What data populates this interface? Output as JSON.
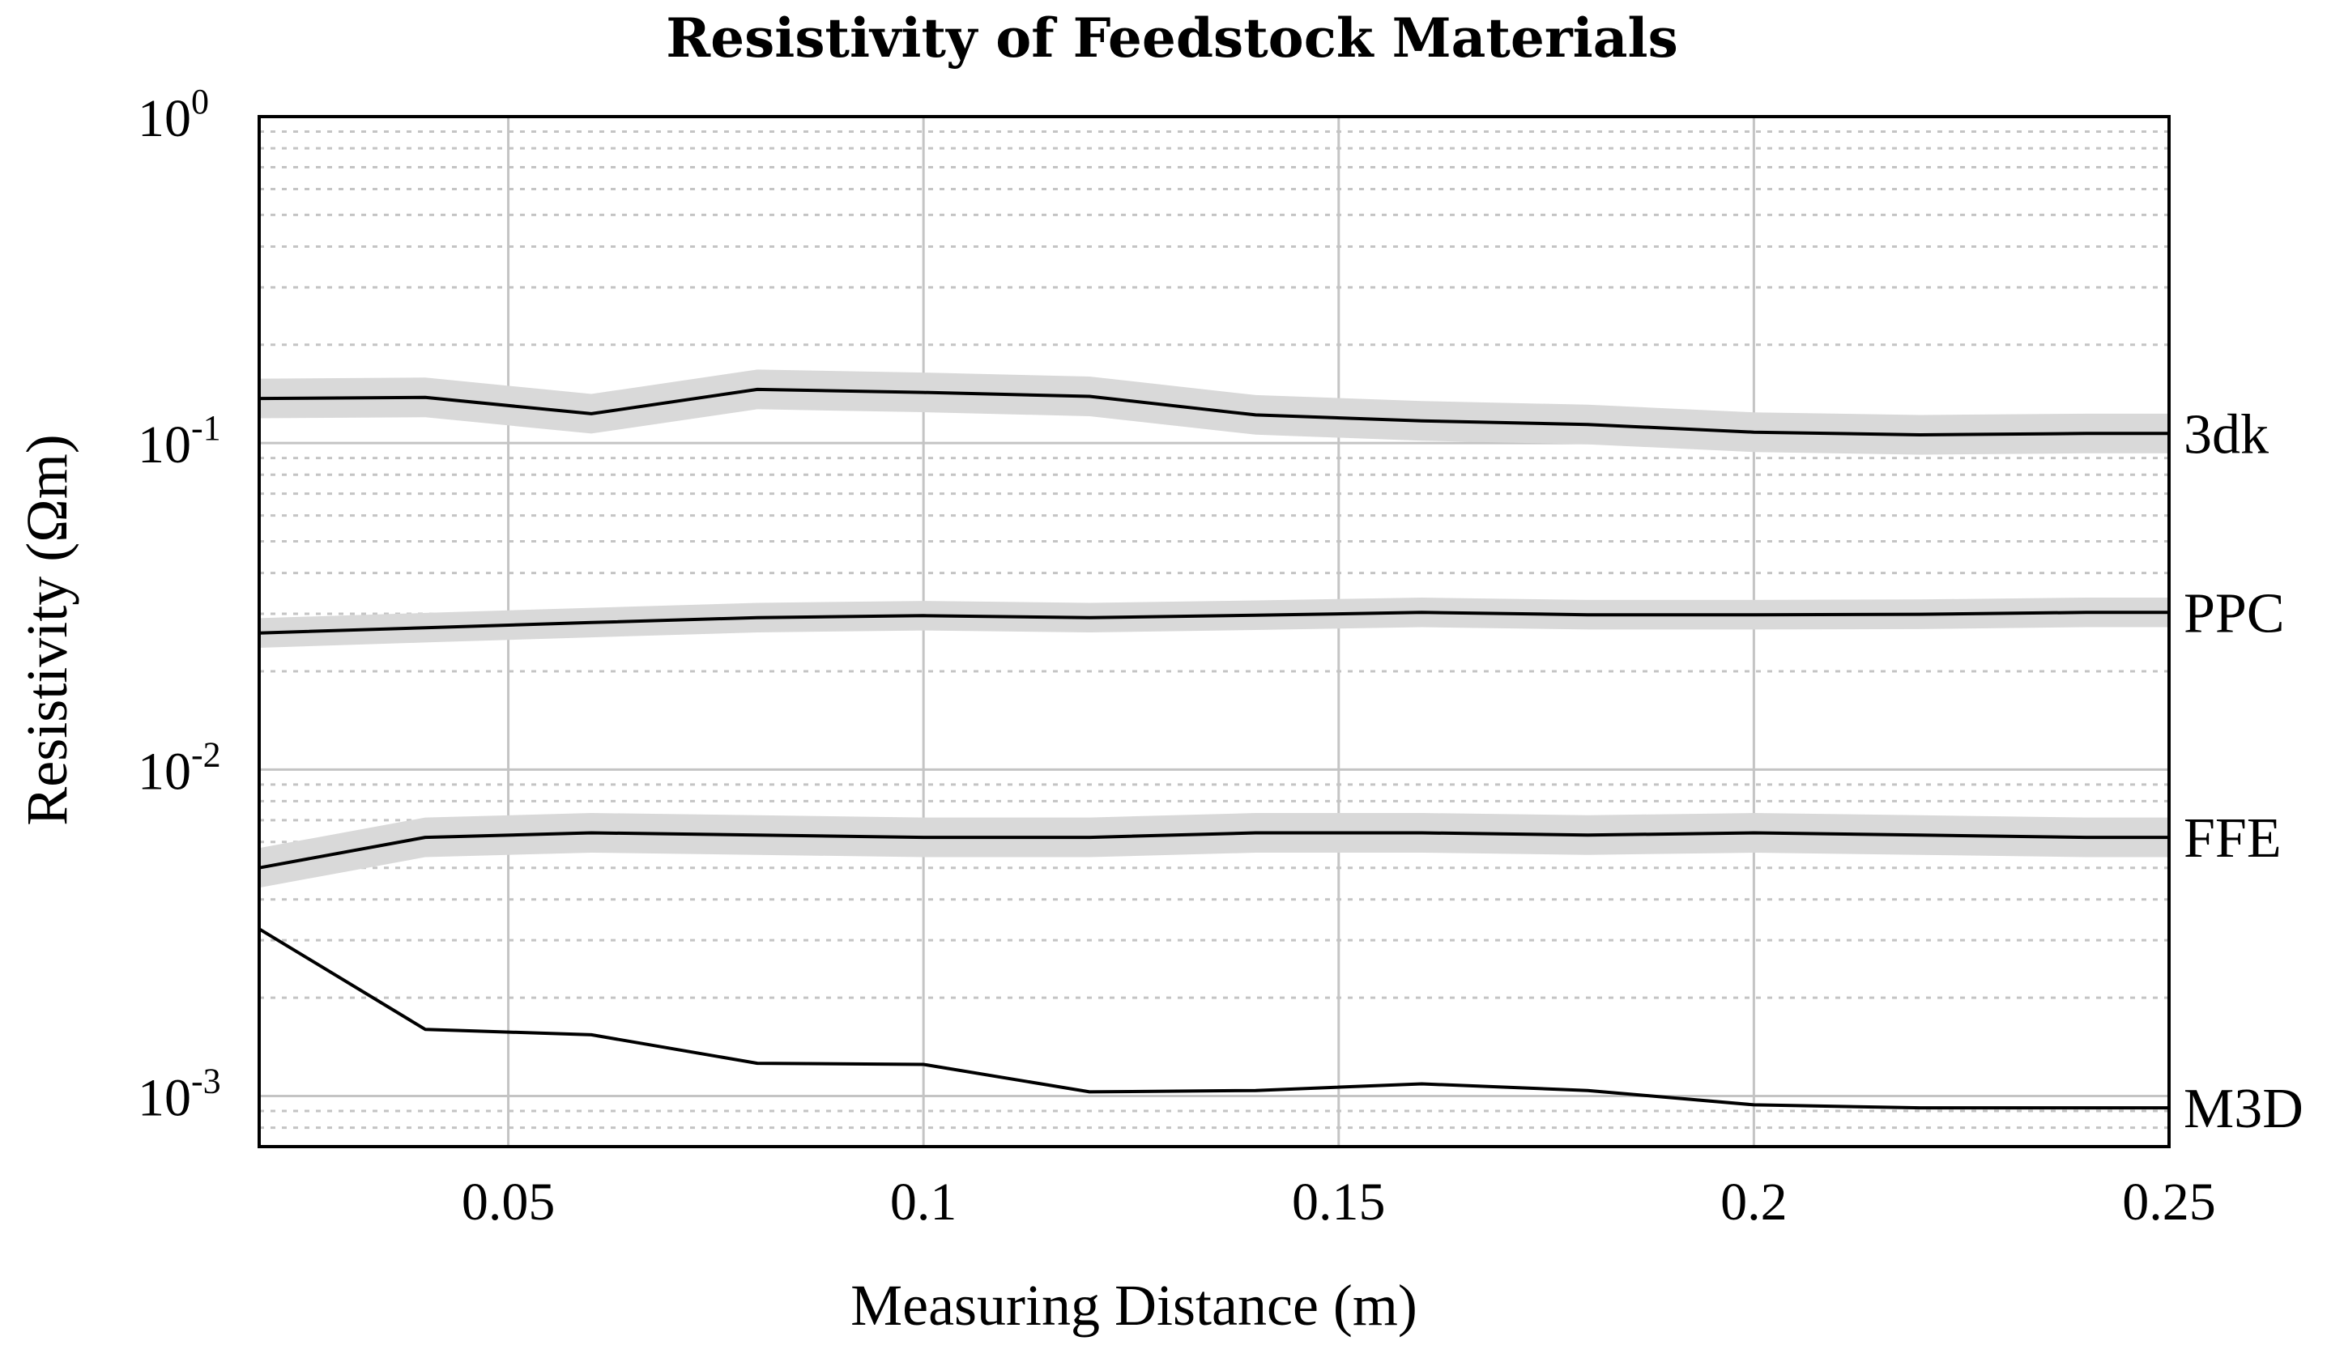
{
  "chart_data": {
    "type": "line",
    "title": "Resistivity of Feedstock Materials",
    "xlabel": "Measuring Distance (m)",
    "ylabel": "Resistivity (Ωm)",
    "xlim": [
      0.02,
      0.25
    ],
    "ylim": [
      0.0007,
      1
    ],
    "yscale": "log",
    "grid": true,
    "x_ticks": [
      "0.05",
      "0.1",
      "0.15",
      "0.2",
      "0.25"
    ],
    "x_tick_values": [
      0.05,
      0.1,
      0.15,
      0.2,
      0.25
    ],
    "y_ticks": [
      {
        "value": 1,
        "base": "10",
        "exp": "0"
      },
      {
        "value": 0.1,
        "base": "10",
        "exp": "-1"
      },
      {
        "value": 0.01,
        "base": "10",
        "exp": "-2"
      },
      {
        "value": 0.001,
        "base": "10",
        "exp": "-3"
      }
    ],
    "x": [
      0.02,
      0.04,
      0.06,
      0.08,
      0.1,
      0.12,
      0.14,
      0.16,
      0.18,
      0.2,
      0.22,
      0.24,
      0.25
    ],
    "series": [
      {
        "name": "3dk",
        "values": [
          0.137,
          0.138,
          0.123,
          0.146,
          0.143,
          0.139,
          0.122,
          0.117,
          0.114,
          0.108,
          0.106,
          0.107,
          0.107
        ],
        "band": 0.15
      },
      {
        "name": "PPC",
        "values": [
          0.0262,
          0.0272,
          0.0282,
          0.0292,
          0.0296,
          0.0292,
          0.0297,
          0.0303,
          0.0298,
          0.0298,
          0.0299,
          0.0303,
          0.0303
        ],
        "band": 0.11
      },
      {
        "name": "FFE",
        "values": [
          0.005,
          0.0062,
          0.0064,
          0.0063,
          0.0062,
          0.0062,
          0.0064,
          0.0064,
          0.0063,
          0.0064,
          0.0063,
          0.0062,
          0.0062
        ],
        "band": 0.15
      },
      {
        "name": "M3D",
        "values": [
          0.00325,
          0.0016,
          0.00154,
          0.00126,
          0.00125,
          0.00103,
          0.00104,
          0.00109,
          0.00104,
          0.00094,
          0.00092,
          0.00092,
          0.00092
        ],
        "band": 0
      }
    ]
  }
}
